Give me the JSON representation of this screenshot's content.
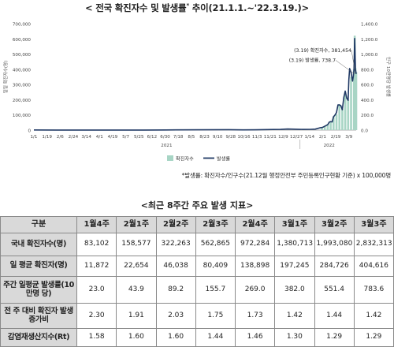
{
  "chart_title_main": "< 전국 확진자수 및 발생률",
  "chart_title_sup": "*",
  "chart_title_tail": " 추이(21.1.1.~'22.3.19.)>",
  "footnote": "*발생률: 확진자수/인구수(21.12월 행정안전부 주민등록인구현황 기준) x 100,000명",
  "table_title": "<최근 8주간 주요 발생 지표>",
  "chart_data": {
    "type": "bar+line",
    "title": "< 전국 확진자수 및 발생률* 추이(21.1.1.~'22.3.19.)>",
    "ylabel_left": "일일 확진자수(명)",
    "ylabel_right": "인구 10만명당 발생률",
    "left_ticks": [
      "0",
      "100,000",
      "200,000",
      "300,000",
      "400,000",
      "500,000",
      "600,000",
      "700,000"
    ],
    "right_ticks": [
      "0.0",
      "200.0",
      "400.0",
      "600.0",
      "800.0",
      "1,000.0",
      "1,200.0",
      "1,400.0"
    ],
    "ylim_left": [
      0,
      700000
    ],
    "ylim_right": [
      0,
      1400
    ],
    "x_ticks": [
      "1/1",
      "1/19",
      "2/6",
      "2/24",
      "3/14",
      "4/1",
      "4/19",
      "5/7",
      "5/25",
      "6/12",
      "6/30",
      "7/18",
      "8/5",
      "8/23",
      "9/10",
      "9/28",
      "10/16",
      "11/3",
      "11/21",
      "12/9",
      "12/27",
      "1/14",
      "2/1",
      "2/19",
      "3/9"
    ],
    "year_labels": [
      "2021",
      "2022"
    ],
    "legend": [
      "확진자수",
      "발생률"
    ],
    "legend_position": "bottom-center",
    "annotations": [
      "(3.19) 확진자수, 381,454",
      "(3.19) 발생률, 738.7"
    ],
    "series": [
      {
        "name": "확진자수",
        "kind": "bar",
        "color": "#a8d5c5",
        "dates": [
          "2022-01-31",
          "2022-02-04",
          "2022-02-08",
          "2022-02-12",
          "2022-02-16",
          "2022-02-20",
          "2022-02-24",
          "2022-02-28",
          "2022-03-04",
          "2022-03-08",
          "2022-03-12",
          "2022-03-16",
          "2022-03-17",
          "2022-03-18",
          "2022-03-19"
        ],
        "values": [
          18000,
          27000,
          40000,
          55000,
          90000,
          104000,
          170000,
          140000,
          250000,
          200000,
          350000,
          400000,
          621000,
          407000,
          381454
        ]
      },
      {
        "name": "발생률",
        "kind": "line",
        "color": "#1f3864",
        "points": [
          [
            "2021-01-01",
            2
          ],
          [
            "2021-02-01",
            1
          ],
          [
            "2021-03-01",
            1
          ],
          [
            "2021-04-01",
            1.5
          ],
          [
            "2021-05-01",
            1.5
          ],
          [
            "2021-06-01",
            1
          ],
          [
            "2021-07-01",
            2
          ],
          [
            "2021-07-15",
            3
          ],
          [
            "2021-08-15",
            4
          ],
          [
            "2021-09-25",
            6
          ],
          [
            "2021-10-15",
            3
          ],
          [
            "2021-11-01",
            4
          ],
          [
            "2021-11-25",
            8
          ],
          [
            "2021-12-05",
            9
          ],
          [
            "2021-12-15",
            15
          ],
          [
            "2021-12-25",
            12
          ],
          [
            "2022-01-05",
            9
          ],
          [
            "2022-01-15",
            10
          ],
          [
            "2022-01-22",
            14
          ],
          [
            "2022-01-29",
            32
          ],
          [
            "2022-02-01",
            36
          ],
          [
            "2022-02-05",
            56
          ],
          [
            "2022-02-08",
            72
          ],
          [
            "2022-02-10",
            105
          ],
          [
            "2022-02-12",
            112
          ],
          [
            "2022-02-14",
            108
          ],
          [
            "2022-02-16",
            176
          ],
          [
            "2022-02-18",
            200
          ],
          [
            "2022-02-20",
            230
          ],
          [
            "2022-02-22",
            332
          ],
          [
            "2022-02-24",
            332
          ],
          [
            "2022-02-26",
            320
          ],
          [
            "2022-02-28",
            268
          ],
          [
            "2022-03-02",
            430
          ],
          [
            "2022-03-04",
            513
          ],
          [
            "2022-03-06",
            421
          ],
          [
            "2022-03-08",
            392
          ],
          [
            "2022-03-09",
            665
          ],
          [
            "2022-03-10",
            810
          ],
          [
            "2022-03-12",
            760
          ],
          [
            "2022-03-14",
            645
          ],
          [
            "2022-03-15",
            705
          ],
          [
            "2022-03-16",
            790
          ],
          [
            "2022-03-17",
            1205
          ],
          [
            "2022-03-18",
            800
          ],
          [
            "2022-03-19",
            738.7
          ]
        ]
      }
    ]
  },
  "table": {
    "header": [
      "구분",
      "1월4주",
      "2월1주",
      "2월2주",
      "2월3주",
      "2월4주",
      "3월1주",
      "3월2주",
      "3월3주"
    ],
    "rows": [
      {
        "label": "국내 확진자수(명)",
        "values": [
          "83,102",
          "158,577",
          "322,263",
          "562,865",
          "972,284",
          "1,380,713",
          "1,993,080",
          "2,832,313"
        ]
      },
      {
        "label": "일 평균 확진자(명)",
        "values": [
          "11,872",
          "22,654",
          "46,038",
          "80,409",
          "138,898",
          "197,245",
          "284,726",
          "404,616"
        ]
      },
      {
        "label": "주간 일평균 발생률(10만명 당)",
        "values": [
          "23.0",
          "43.9",
          "89.2",
          "155.7",
          "269.0",
          "382.0",
          "551.4",
          "783.6"
        ]
      },
      {
        "label": "전 주 대비 확진자 발생 증가비",
        "values": [
          "2.30",
          "1.91",
          "2.03",
          "1.75",
          "1.73",
          "1.42",
          "1.44",
          "1.42"
        ]
      },
      {
        "label": "감염재생산지수(Rt)",
        "values": [
          "1.58",
          "1.60",
          "1.60",
          "1.44",
          "1.46",
          "1.30",
          "1.29",
          "1.29"
        ]
      }
    ]
  }
}
